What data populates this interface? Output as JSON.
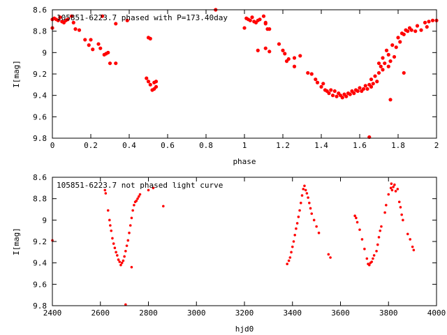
{
  "chart_data": [
    {
      "type": "scatter",
      "title": "105851-6223.7 phased with P=173.40day",
      "xlabel": "phase",
      "ylabel": "I[mag]",
      "xlim": [
        0,
        2
      ],
      "ylim": [
        8.6,
        9.8
      ],
      "y_inverted": true,
      "grid": false,
      "marker_color": "#ff0000",
      "xticks": [
        "0",
        "0.2",
        "0.4",
        "0.6",
        "0.8",
        "1",
        "1.2",
        "1.4",
        "1.6",
        "1.8",
        "2"
      ],
      "yticks": [
        "8.6",
        "8.8",
        "9",
        "9.2",
        "9.4",
        "9.6",
        "9.8"
      ],
      "points": [
        [
          0.0,
          8.77
        ],
        [
          0.01,
          8.68
        ],
        [
          0.02,
          8.69
        ],
        [
          0.03,
          8.7
        ],
        [
          0.04,
          8.67
        ],
        [
          0.05,
          8.71
        ],
        [
          0.06,
          8.72
        ],
        [
          0.07,
          8.7
        ],
        [
          0.08,
          8.69
        ],
        [
          0.1,
          8.66
        ],
        [
          0.11,
          8.72
        ],
        [
          0.12,
          8.78
        ],
        [
          0.14,
          8.79
        ],
        [
          0.17,
          8.88
        ],
        [
          0.19,
          8.93
        ],
        [
          0.2,
          8.88
        ],
        [
          0.21,
          8.97
        ],
        [
          0.24,
          8.92
        ],
        [
          0.25,
          8.96
        ],
        [
          0.26,
          8.66
        ],
        [
          0.27,
          9.02
        ],
        [
          0.28,
          9.01
        ],
        [
          0.29,
          9.0
        ],
        [
          0.3,
          9.1
        ],
        [
          0.33,
          9.1
        ],
        [
          0.33,
          8.73
        ],
        [
          0.39,
          8.7
        ],
        [
          0.49,
          9.24
        ],
        [
          0.5,
          9.27
        ],
        [
          0.5,
          8.86
        ],
        [
          0.51,
          8.87
        ],
        [
          0.51,
          9.3
        ],
        [
          0.52,
          9.35
        ],
        [
          0.53,
          9.28
        ],
        [
          0.53,
          9.34
        ],
        [
          0.54,
          9.27
        ],
        [
          0.54,
          9.32
        ],
        [
          1.0,
          8.77
        ],
        [
          1.01,
          8.68
        ],
        [
          1.02,
          8.69
        ],
        [
          1.03,
          8.7
        ],
        [
          1.04,
          8.67
        ],
        [
          1.05,
          8.71
        ],
        [
          1.06,
          8.72
        ],
        [
          1.07,
          8.7
        ],
        [
          1.08,
          8.69
        ],
        [
          1.1,
          8.66
        ],
        [
          1.11,
          8.72
        ],
        [
          1.12,
          8.78
        ],
        [
          0.0,
          8.69
        ],
        [
          0.85,
          8.6
        ],
        [
          1.07,
          8.98
        ],
        [
          1.11,
          8.73
        ],
        [
          1.11,
          8.96
        ],
        [
          1.13,
          8.78
        ],
        [
          1.13,
          8.99
        ],
        [
          1.18,
          8.92
        ],
        [
          1.2,
          8.98
        ],
        [
          1.21,
          9.01
        ],
        [
          1.22,
          9.08
        ],
        [
          1.23,
          9.06
        ],
        [
          1.26,
          9.05
        ],
        [
          1.29,
          9.03
        ],
        [
          1.33,
          9.19
        ],
        [
          1.35,
          9.2
        ],
        [
          1.37,
          9.25
        ],
        [
          1.38,
          9.28
        ],
        [
          1.4,
          9.32
        ],
        [
          1.41,
          9.29
        ],
        [
          1.42,
          9.35
        ],
        [
          1.43,
          9.36
        ],
        [
          1.44,
          9.38
        ],
        [
          1.45,
          9.35
        ],
        [
          1.46,
          9.4
        ],
        [
          1.47,
          9.36
        ],
        [
          1.48,
          9.41
        ],
        [
          1.49,
          9.38
        ],
        [
          1.5,
          9.4
        ],
        [
          1.51,
          9.42
        ],
        [
          1.52,
          9.39
        ],
        [
          1.53,
          9.41
        ],
        [
          1.54,
          9.38
        ],
        [
          1.55,
          9.39
        ],
        [
          1.56,
          9.36
        ],
        [
          1.57,
          9.38
        ],
        [
          1.58,
          9.35
        ],
        [
          1.59,
          9.36
        ],
        [
          1.6,
          9.33
        ],
        [
          1.61,
          9.36
        ],
        [
          1.62,
          9.34
        ],
        [
          1.63,
          9.31
        ],
        [
          1.64,
          9.34
        ],
        [
          1.65,
          9.3
        ],
        [
          1.66,
          9.32
        ],
        [
          1.66,
          9.25
        ],
        [
          1.67,
          9.29
        ],
        [
          1.68,
          9.22
        ],
        [
          1.69,
          9.27
        ],
        [
          1.7,
          9.19
        ],
        [
          1.7,
          9.1
        ],
        [
          1.71,
          9.13
        ],
        [
          1.72,
          9.16
        ],
        [
          1.72,
          9.05
        ],
        [
          1.73,
          9.1
        ],
        [
          1.74,
          8.98
        ],
        [
          1.75,
          9.13
        ],
        [
          1.75,
          9.02
        ],
        [
          1.76,
          9.08
        ],
        [
          1.77,
          8.93
        ],
        [
          1.78,
          9.04
        ],
        [
          1.79,
          8.95
        ],
        [
          1.8,
          8.86
        ],
        [
          1.81,
          8.9
        ],
        [
          1.82,
          8.82
        ],
        [
          1.83,
          8.83
        ],
        [
          1.84,
          8.79
        ],
        [
          1.85,
          8.8
        ],
        [
          1.86,
          8.77
        ],
        [
          1.87,
          8.79
        ],
        [
          1.89,
          8.8
        ],
        [
          1.9,
          8.75
        ],
        [
          1.92,
          8.79
        ],
        [
          1.94,
          8.72
        ],
        [
          1.95,
          8.76
        ],
        [
          1.96,
          8.71
        ],
        [
          1.98,
          8.7
        ],
        [
          2.0,
          8.7
        ],
        [
          1.65,
          9.79
        ],
        [
          1.76,
          9.44
        ],
        [
          1.83,
          9.19
        ],
        [
          1.26,
          9.13
        ]
      ]
    },
    {
      "type": "scatter",
      "title": "105851-6223.7 not phased light curve",
      "xlabel": "hjd0",
      "ylabel": "I[mag]",
      "xlim": [
        2400,
        4000
      ],
      "ylim": [
        8.6,
        9.8
      ],
      "y_inverted": true,
      "grid": false,
      "marker_color": "#ff0000",
      "xticks": [
        "2400",
        "2600",
        "2800",
        "3000",
        "3200",
        "3400",
        "3600",
        "3800",
        "4000"
      ],
      "yticks": [
        "8.6",
        "8.8",
        "9",
        "9.2",
        "9.4",
        "9.6",
        "9.8"
      ],
      "points": [
        [
          2400,
          9.19
        ],
        [
          2619,
          8.72
        ],
        [
          2622,
          8.75
        ],
        [
          2632,
          8.91
        ],
        [
          2638,
          9.0
        ],
        [
          2641,
          9.05
        ],
        [
          2645,
          9.1
        ],
        [
          2650,
          9.17
        ],
        [
          2655,
          9.22
        ],
        [
          2660,
          9.26
        ],
        [
          2665,
          9.3
        ],
        [
          2670,
          9.33
        ],
        [
          2675,
          9.37
        ],
        [
          2680,
          9.39
        ],
        [
          2685,
          9.42
        ],
        [
          2690,
          9.4
        ],
        [
          2695,
          9.38
        ],
        [
          2700,
          9.34
        ],
        [
          2705,
          9.29
        ],
        [
          2710,
          9.24
        ],
        [
          2715,
          9.19
        ],
        [
          2720,
          9.12
        ],
        [
          2725,
          9.05
        ],
        [
          2730,
          8.98
        ],
        [
          2735,
          8.91
        ],
        [
          2740,
          8.86
        ],
        [
          2745,
          8.83
        ],
        [
          2750,
          8.82
        ],
        [
          2755,
          8.8
        ],
        [
          2760,
          8.78
        ],
        [
          2765,
          8.76
        ],
        [
          2730,
          9.44
        ],
        [
          2705,
          9.79
        ],
        [
          2800,
          8.72
        ],
        [
          2820,
          8.7
        ],
        [
          2862,
          8.87
        ],
        [
          3378,
          9.41
        ],
        [
          3385,
          9.38
        ],
        [
          3390,
          9.35
        ],
        [
          3395,
          9.3
        ],
        [
          3400,
          9.25
        ],
        [
          3405,
          9.2
        ],
        [
          3410,
          9.14
        ],
        [
          3415,
          9.08
        ],
        [
          3420,
          9.03
        ],
        [
          3425,
          8.97
        ],
        [
          3430,
          8.91
        ],
        [
          3435,
          8.84
        ],
        [
          3440,
          8.77
        ],
        [
          3445,
          8.71
        ],
        [
          3450,
          8.68
        ],
        [
          3455,
          8.72
        ],
        [
          3460,
          8.75
        ],
        [
          3465,
          8.79
        ],
        [
          3470,
          8.84
        ],
        [
          3475,
          8.89
        ],
        [
          3480,
          8.94
        ],
        [
          3490,
          9.0
        ],
        [
          3500,
          9.06
        ],
        [
          3510,
          9.12
        ],
        [
          3550,
          9.32
        ],
        [
          3558,
          9.35
        ],
        [
          3660,
          8.96
        ],
        [
          3665,
          8.98
        ],
        [
          3670,
          9.02
        ],
        [
          3680,
          9.09
        ],
        [
          3690,
          9.18
        ],
        [
          3700,
          9.27
        ],
        [
          3710,
          9.36
        ],
        [
          3715,
          9.41
        ],
        [
          3720,
          9.42
        ],
        [
          3725,
          9.4
        ],
        [
          3730,
          9.39
        ],
        [
          3735,
          9.36
        ],
        [
          3740,
          9.33
        ],
        [
          3750,
          9.29
        ],
        [
          3755,
          9.23
        ],
        [
          3760,
          9.16
        ],
        [
          3765,
          9.1
        ],
        [
          3770,
          9.06
        ],
        [
          3785,
          8.93
        ],
        [
          3790,
          8.86
        ],
        [
          3800,
          8.76
        ],
        [
          3810,
          8.7
        ],
        [
          3812,
          8.66
        ],
        [
          3815,
          8.72
        ],
        [
          3820,
          8.69
        ],
        [
          3825,
          8.67
        ],
        [
          3830,
          8.73
        ],
        [
          3838,
          8.71
        ],
        [
          3845,
          8.83
        ],
        [
          3850,
          8.88
        ],
        [
          3855,
          8.95
        ],
        [
          3860,
          9.0
        ],
        [
          3880,
          9.13
        ],
        [
          3890,
          9.18
        ],
        [
          3900,
          9.25
        ],
        [
          3905,
          9.28
        ]
      ]
    }
  ]
}
